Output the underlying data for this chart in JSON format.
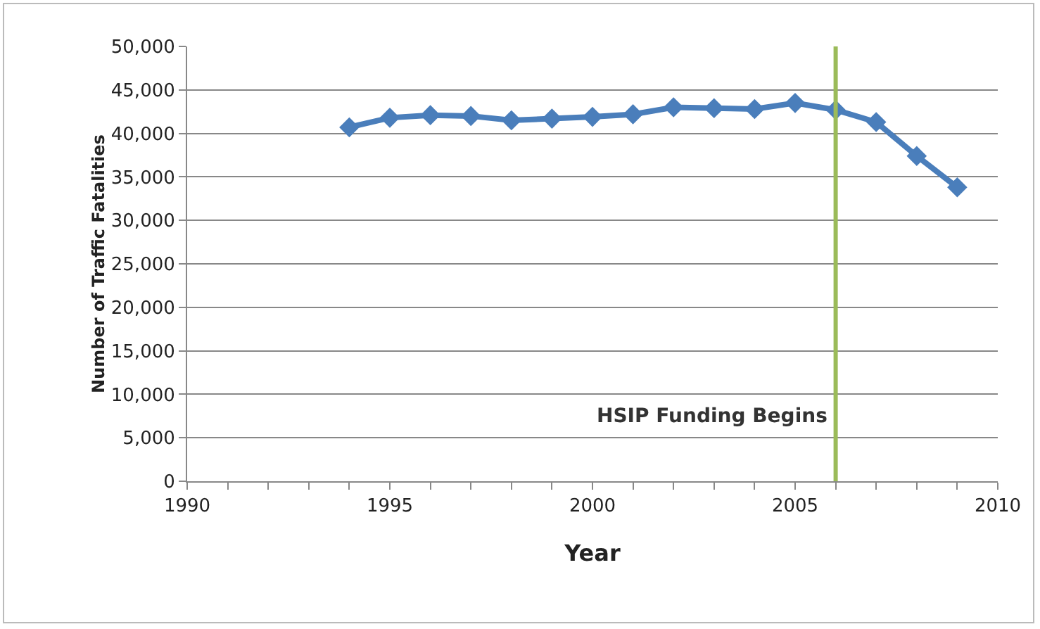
{
  "chart_data": {
    "type": "line",
    "xlabel": "Year",
    "ylabel": "Number of Traffic Fatalities",
    "x": [
      1994,
      1995,
      1996,
      1997,
      1998,
      1999,
      2000,
      2001,
      2002,
      2003,
      2004,
      2005,
      2006,
      2007,
      2008,
      2009
    ],
    "series": [
      {
        "color": "#4a7ebb",
        "values": [
          40700,
          41800,
          42100,
          42000,
          41500,
          41700,
          41900,
          42200,
          43000,
          42900,
          42800,
          43500,
          42700,
          41300,
          37400,
          33800
        ]
      }
    ],
    "xlim": [
      1990,
      2010
    ],
    "xticks": [
      1990,
      {
        "value": 1991,
        "label": null
      },
      {
        "value": 1992,
        "label": null
      },
      {
        "value": 1993,
        "label": null
      },
      {
        "value": 1994,
        "label": null
      },
      1995,
      {
        "value": 1996,
        "label": null
      },
      {
        "value": 1997,
        "label": null
      },
      {
        "value": 1998,
        "label": null
      },
      {
        "value": 1999,
        "label": null
      },
      2000,
      {
        "value": 2001,
        "label": null
      },
      {
        "value": 2002,
        "label": null
      },
      {
        "value": 2003,
        "label": null
      },
      {
        "value": 2004,
        "label": null
      },
      2005,
      {
        "value": 2006,
        "label": null
      },
      {
        "value": 2007,
        "label": null
      },
      {
        "value": 2008,
        "label": null
      },
      {
        "value": 2009,
        "label": null
      },
      2010
    ],
    "ylim": [
      0,
      50000
    ],
    "yticks": [
      {
        "value": 0,
        "label": "0"
      },
      {
        "value": 5000,
        "label": "5,000"
      },
      {
        "value": 10000,
        "label": "10,000"
      },
      {
        "value": 15000,
        "label": "15,000"
      },
      {
        "value": 20000,
        "label": "20,000"
      },
      {
        "value": 25000,
        "label": "25,000"
      },
      {
        "value": 30000,
        "label": "30,000"
      },
      {
        "value": 35000,
        "label": "35,000"
      },
      {
        "value": 40000,
        "label": "40,000"
      },
      {
        "value": 45000,
        "label": "45,000"
      },
      {
        "value": 50000,
        "label": "50,000"
      }
    ],
    "ref_lines": [
      {
        "axis": "x",
        "value": 2006,
        "label": "HSIP Funding Begins",
        "color": "#9bbb59"
      }
    ],
    "grid": "y",
    "marker": "diamond",
    "line_style": "solid"
  }
}
